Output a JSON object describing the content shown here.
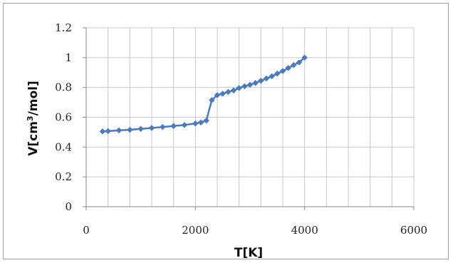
{
  "chart_data": {
    "type": "scatter",
    "title": "",
    "xlabel": "T[K]",
    "ylabel_parts": [
      "V[cm",
      "3",
      "/mol]"
    ],
    "xlim": [
      0,
      6000
    ],
    "ylim": [
      0,
      1.2
    ],
    "x_ticks": [
      0,
      2000,
      4000,
      6000
    ],
    "x_tick_labels": [
      "0",
      "2000",
      "4000",
      "6000"
    ],
    "y_ticks": [
      0,
      0.2,
      0.4,
      0.6,
      0.8,
      1.0,
      1.2
    ],
    "y_tick_labels": [
      "0",
      "0.2",
      "0.4",
      "0.6",
      "0.8",
      "1",
      "1.2"
    ],
    "minor_x_grid_step": 400,
    "grid": true,
    "line_style": "lines-with-diamond-markers",
    "colors": {
      "series": "#4a7bbf",
      "grid": "#c8c8c8",
      "axis": "#8a8a8a"
    },
    "series": [
      {
        "x": [
          300,
          400,
          600,
          800,
          1000,
          1200,
          1400,
          1600,
          1800,
          2000,
          2100,
          2200,
          2300,
          2400,
          2500,
          2600,
          2700,
          2800,
          2900,
          3000,
          3100,
          3200,
          3300,
          3400,
          3500,
          3600,
          3700,
          3800,
          3900,
          4000
        ],
        "y": [
          0.505,
          0.507,
          0.512,
          0.516,
          0.522,
          0.528,
          0.535,
          0.541,
          0.548,
          0.558,
          0.565,
          0.578,
          0.715,
          0.748,
          0.758,
          0.77,
          0.78,
          0.796,
          0.808,
          0.818,
          0.83,
          0.845,
          0.86,
          0.875,
          0.893,
          0.91,
          0.93,
          0.95,
          0.968,
          1.0
        ]
      }
    ]
  }
}
